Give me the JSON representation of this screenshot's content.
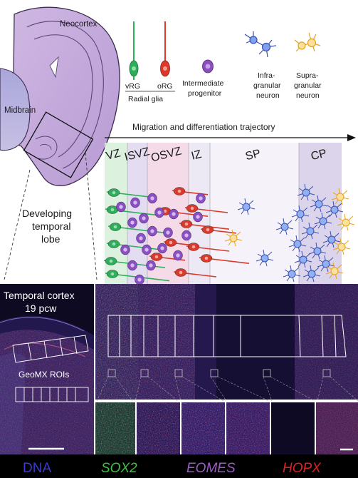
{
  "top": {
    "neocortex_label": "Neocortex",
    "midbrain_label": "Midbrain",
    "dev_label_1": "Developing",
    "dev_label_2": "temporal",
    "dev_label_3": "lobe"
  },
  "legend": {
    "vrg": "vRG",
    "org": "oRG",
    "radial_glia": "Radial glia",
    "ip_1": "Intermediate",
    "ip_2": "progenitor",
    "infra_1": "Infra-",
    "infra_2": "granular",
    "infra_3": "neuron",
    "supra_1": "Supra-",
    "supra_2": "granular",
    "supra_3": "neuron"
  },
  "trajectory": {
    "title": "Migration and differentiation trajectory",
    "zones": [
      "VZ",
      "ISVZ",
      "OSVZ",
      "IZ",
      "SP",
      "CP"
    ]
  },
  "micrograph": {
    "cortex_label_1": "Temporal cortex",
    "cortex_label_2": "19 pcw",
    "roi_label": "GeoMX ROIs"
  },
  "markers": [
    {
      "name": "DNA",
      "color": "#3b3bd6"
    },
    {
      "name": "SOX2",
      "color": "#3fc23f"
    },
    {
      "name": "EOMES",
      "color": "#9c5cc4"
    },
    {
      "name": "HOPX",
      "color": "#e0201c"
    }
  ],
  "colors": {
    "vrg": "#2cae5a",
    "org": "#d93a2b",
    "ip": "#8a4fc0",
    "infra": "#4a66c8",
    "supra": "#f2b632"
  }
}
